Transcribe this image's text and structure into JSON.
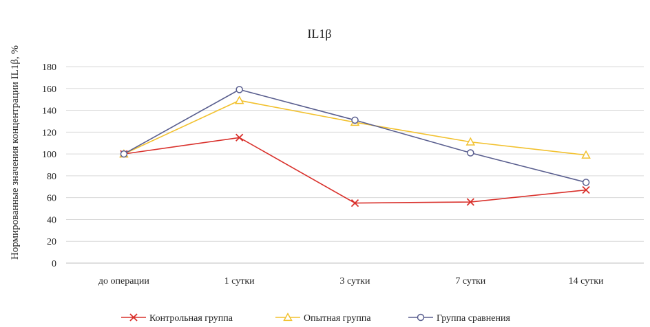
{
  "chart_data": {
    "type": "line",
    "title": "IL1β",
    "xlabel": "",
    "ylabel": "Нормированные значения концентрации IL1β, %",
    "categories": [
      "до операции",
      "1 сутки",
      "3 сутки",
      "7 сутки",
      "14 сутки"
    ],
    "ylim": [
      0,
      180
    ],
    "yticks": [
      0,
      20,
      40,
      60,
      80,
      100,
      120,
      140,
      160,
      180
    ],
    "grid": true,
    "legend_position": "bottom",
    "series": [
      {
        "name": "Контрольная группа",
        "values": [
          100,
          115,
          55,
          56,
          67
        ],
        "color": "#d9302b",
        "marker": "x"
      },
      {
        "name": "Опытная группа",
        "values": [
          100,
          149,
          129,
          111,
          99
        ],
        "color": "#f2c12e",
        "marker": "triangle"
      },
      {
        "name": "Группа сравнения",
        "values": [
          100,
          159,
          131,
          101,
          74
        ],
        "color": "#5a5f8f",
        "marker": "circle"
      }
    ]
  }
}
